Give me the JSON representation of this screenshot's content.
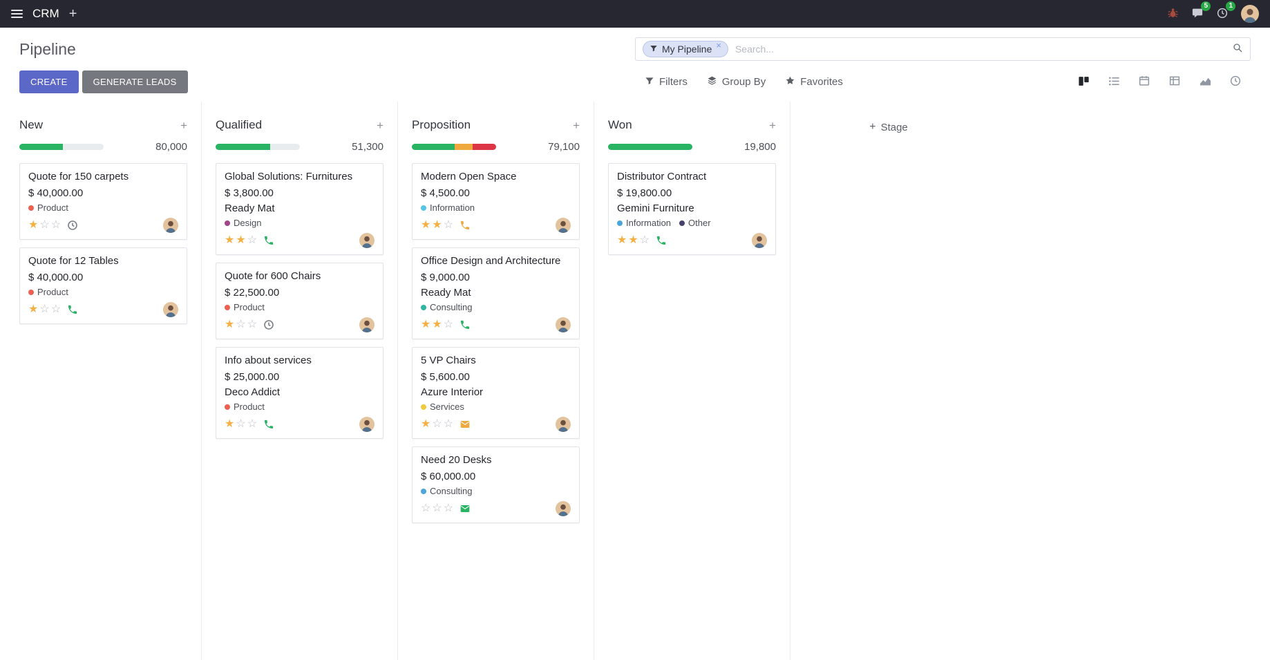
{
  "icons": {
    "plus": "+",
    "close": "×",
    "star_filled": "★",
    "star_empty": "☆"
  },
  "colors": {
    "topbar_bg": "#272732",
    "primary_button": "#5c68c7",
    "secondary_button": "#75787e",
    "progress_green": "#28b463",
    "progress_yellow": "#efa93f",
    "progress_red": "#dc3545",
    "progress_empty": "#e9ecef",
    "star_filled": "#f5b043",
    "badge_green": "#28a745"
  },
  "topbar": {
    "app_name": "CRM",
    "systray": {
      "messages_badge": "5",
      "activities_badge": "1"
    }
  },
  "control_panel": {
    "title": "Pipeline",
    "create_label": "CREATE",
    "generate_leads_label": "GENERATE LEADS",
    "search": {
      "facet_label": "My Pipeline",
      "placeholder": "Search..."
    },
    "menus": {
      "filters": "Filters",
      "group_by": "Group By",
      "favorites": "Favorites"
    },
    "view_switcher": [
      "kanban",
      "list",
      "calendar",
      "pivot",
      "graph",
      "activity"
    ]
  },
  "board": {
    "add_stage": "Stage",
    "columns": [
      {
        "name": "New",
        "total": "80,000",
        "progress": [
          {
            "color": "#28b463",
            "pct": 52
          }
        ],
        "cards": [
          {
            "title": "Quote for 150 carpets",
            "amount": "$ 40,000.00",
            "company": "",
            "tags": [
              {
                "label": "Product",
                "color": "#f06050"
              }
            ],
            "stars": 1,
            "activity": {
              "type": "clock",
              "color": "#7b7f87"
            }
          },
          {
            "title": "Quote for 12 Tables",
            "amount": "$ 40,000.00",
            "company": "",
            "tags": [
              {
                "label": "Product",
                "color": "#f06050"
              }
            ],
            "stars": 1,
            "activity": {
              "type": "phone",
              "color": "#28b463"
            }
          }
        ]
      },
      {
        "name": "Qualified",
        "total": "51,300",
        "progress": [
          {
            "color": "#28b463",
            "pct": 65
          }
        ],
        "cards": [
          {
            "title": "Global Solutions: Furnitures",
            "amount": "$ 3,800.00",
            "company": "Ready Mat",
            "tags": [
              {
                "label": "Design",
                "color": "#a24689"
              }
            ],
            "stars": 2,
            "activity": {
              "type": "phone",
              "color": "#28b463"
            }
          },
          {
            "title": "Quote for 600 Chairs",
            "amount": "$ 22,500.00",
            "company": "",
            "tags": [
              {
                "label": "Product",
                "color": "#f06050"
              }
            ],
            "stars": 1,
            "activity": {
              "type": "clock",
              "color": "#7b7f87"
            }
          },
          {
            "title": "Info about services",
            "amount": "$ 25,000.00",
            "company": "Deco Addict",
            "tags": [
              {
                "label": "Product",
                "color": "#f06050"
              }
            ],
            "stars": 1,
            "activity": {
              "type": "phone",
              "color": "#28b463"
            }
          }
        ]
      },
      {
        "name": "Proposition",
        "total": "79,100",
        "progress": [
          {
            "color": "#28b463",
            "pct": 51
          },
          {
            "color": "#efa93f",
            "pct": 21
          },
          {
            "color": "#dc3545",
            "pct": 28
          }
        ],
        "cards": [
          {
            "title": "Modern Open Space",
            "amount": "$ 4,500.00",
            "company": "",
            "tags": [
              {
                "label": "Information",
                "color": "#56c5ea"
              }
            ],
            "stars": 2,
            "activity": {
              "type": "phone",
              "color": "#efa93f"
            }
          },
          {
            "title": "Office Design and Architecture",
            "amount": "$ 9,000.00",
            "company": "Ready Mat",
            "tags": [
              {
                "label": "Consulting",
                "color": "#2eb5a3"
              }
            ],
            "stars": 2,
            "activity": {
              "type": "phone",
              "color": "#28b463"
            }
          },
          {
            "title": "5 VP Chairs",
            "amount": "$ 5,600.00",
            "company": "Azure Interior",
            "tags": [
              {
                "label": "Services",
                "color": "#f0c93f"
              }
            ],
            "stars": 1,
            "activity": {
              "type": "envelope",
              "color": "#efa93f"
            }
          },
          {
            "title": "Need 20 Desks",
            "amount": "$ 60,000.00",
            "company": "",
            "tags": [
              {
                "label": "Consulting",
                "color": "#4ba6dd"
              }
            ],
            "stars": 0,
            "activity": {
              "type": "envelope",
              "color": "#28b463"
            }
          }
        ]
      },
      {
        "name": "Won",
        "total": "19,800",
        "progress": [
          {
            "color": "#28b463",
            "pct": 100
          }
        ],
        "cards": [
          {
            "title": "Distributor Contract",
            "amount": "$ 19,800.00",
            "company": "Gemini Furniture",
            "tags": [
              {
                "label": "Information",
                "color": "#4ba6dd"
              },
              {
                "label": "Other",
                "color": "#45436b"
              }
            ],
            "stars": 2,
            "activity": {
              "type": "phone",
              "color": "#28b463"
            }
          }
        ]
      }
    ]
  }
}
